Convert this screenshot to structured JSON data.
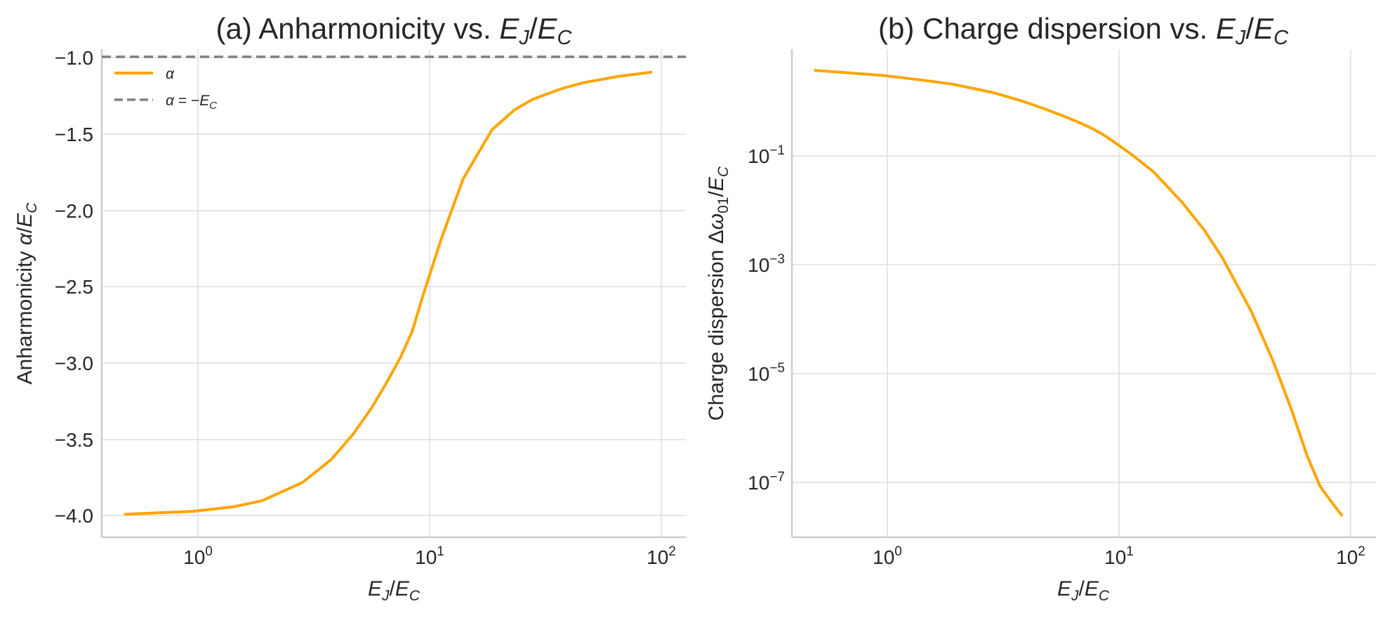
{
  "chart_data": [
    {
      "type": "line",
      "title_prefix": "(a) Anharmonicity vs. ",
      "title_var": "EJ/EC",
      "xlabel": "EJ/EC",
      "ylabel": "Anharmonicity α/EC",
      "xscale": "log",
      "xlim": [
        0.4,
        140
      ],
      "ylim": [
        -4.15,
        -0.95
      ],
      "xticks": [
        1,
        10,
        100
      ],
      "yticks": [
        -4.0,
        -3.5,
        -3.0,
        -2.5,
        -2.0,
        -1.5,
        -1.0
      ],
      "ytick_labels": [
        "−4.0",
        "−3.5",
        "−3.0",
        "−2.5",
        "−2.0",
        "−1.5",
        "−1.0"
      ],
      "grid": true,
      "legend": {
        "position": "top-left",
        "entries": [
          {
            "label": "α",
            "style": "solid",
            "color": "#FFA500"
          },
          {
            "label": "α = −EC",
            "style": "dashed",
            "color": "#808080"
          }
        ]
      },
      "series": [
        {
          "name": "α",
          "color": "#FFA500",
          "x": [
            0.5,
            0.7,
            1.0,
            1.5,
            2.0,
            3.0,
            4.0,
            5.0,
            6.0,
            7.0,
            8.0,
            9.0,
            10.0,
            12.0,
            15.0,
            20.0,
            25.0,
            30.0,
            40.0,
            50.0,
            70.0,
            100.0
          ],
          "y": [
            -4.0,
            -3.99,
            -3.98,
            -3.95,
            -3.91,
            -3.79,
            -3.64,
            -3.47,
            -3.3,
            -3.13,
            -2.97,
            -2.8,
            -2.57,
            -2.2,
            -1.8,
            -1.48,
            -1.35,
            -1.28,
            -1.21,
            -1.17,
            -1.13,
            -1.1
          ]
        },
        {
          "name": "α = −EC",
          "color": "#808080",
          "dashed": true,
          "x": [
            0.4,
            140
          ],
          "y": [
            -1.0,
            -1.0
          ]
        }
      ]
    },
    {
      "type": "line",
      "title_prefix": "(b) Charge dispersion vs. ",
      "title_var": "EJ/EC",
      "xlabel": "EJ/EC",
      "ylabel": "Charge dispersion Δω01/EC",
      "xscale": "log",
      "yscale": "log",
      "xlim": [
        0.4,
        140
      ],
      "ylim": [
        1e-08,
        15.0
      ],
      "xticks": [
        1,
        10,
        100
      ],
      "yticks": [
        0.1,
        0.001,
        1e-05,
        1e-07
      ],
      "ytick_exponents": [
        "−1",
        "−3",
        "−5",
        "−7"
      ],
      "grid": true,
      "series": [
        {
          "name": "Δω01",
          "color": "#FFA500",
          "x": [
            0.5,
            0.7,
            1.0,
            1.5,
            2.0,
            3.0,
            4.0,
            5.0,
            6.0,
            7.0,
            8.0,
            9.0,
            10.0,
            12.0,
            15.0,
            20.0,
            25.0,
            30.0,
            40.0,
            50.0,
            60.0,
            70.0,
            80.0,
            90.0,
            100.0
          ],
          "y": [
            6.0,
            5.4,
            4.8,
            3.9,
            3.3,
            2.3,
            1.6,
            1.15,
            0.85,
            0.65,
            0.5,
            0.38,
            0.28,
            0.16,
            0.075,
            0.02,
            0.006,
            0.0018,
            0.00018,
            2e-05,
            2.5e-06,
            3.5e-07,
            9e-08,
            4.5e-08,
            2.5e-08
          ]
        }
      ]
    }
  ]
}
